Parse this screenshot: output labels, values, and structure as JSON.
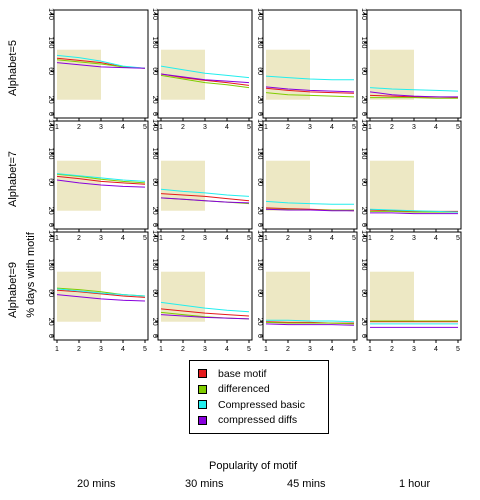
{
  "chart_data": {
    "type": "line",
    "ylabel": "% days with motif",
    "xlabel": "Popularity of motif",
    "row_labels": [
      "Alphabet=5",
      "Alphabet=7",
      "Alphabet=9"
    ],
    "column_labels": [
      "20 mins",
      "30 mins",
      "45 mins",
      "1 hour"
    ],
    "x_ticks": [
      1,
      2,
      3,
      4,
      5
    ],
    "y_ticks": [
      0,
      20,
      60,
      100,
      140
    ],
    "xlim": [
      1,
      5
    ],
    "ylim": [
      0,
      140
    ],
    "shaded_region": {
      "x": [
        1,
        3
      ],
      "y": [
        20,
        90
      ]
    },
    "shaded_color": "#ede8c4",
    "series_styles": [
      {
        "name": "base motif",
        "color": "#e41a1c"
      },
      {
        "name": "differenced",
        "color": "#80cc00"
      },
      {
        "name": "Compressed basic",
        "color": "#22eeee"
      },
      {
        "name": "compressed diffs",
        "color": "#8800dd"
      }
    ],
    "panels": [
      {
        "row": 0,
        "col": 0,
        "series": [
          [
            78,
            75,
            72,
            66,
            64
          ],
          [
            76,
            73,
            70,
            66,
            64
          ],
          [
            82,
            79,
            74,
            67,
            64
          ],
          [
            72,
            69,
            66,
            65,
            64
          ]
        ]
      },
      {
        "row": 0,
        "col": 1,
        "series": [
          [
            56,
            51,
            47,
            44,
            40
          ],
          [
            54,
            49,
            44,
            41,
            37
          ],
          [
            67,
            62,
            57,
            54,
            51
          ],
          [
            56,
            52,
            48,
            46,
            44
          ]
        ]
      },
      {
        "row": 0,
        "col": 2,
        "series": [
          [
            36,
            33,
            31,
            30,
            29
          ],
          [
            30,
            27,
            26,
            25,
            24
          ],
          [
            53,
            51,
            49,
            48,
            48
          ],
          [
            38,
            35,
            33,
            32,
            31
          ]
        ]
      },
      {
        "row": 0,
        "col": 3,
        "series": [
          [
            26,
            25,
            24,
            24,
            23
          ],
          [
            23,
            23,
            23,
            22,
            22
          ],
          [
            37,
            35,
            34,
            33,
            32
          ],
          [
            31,
            27,
            25,
            24,
            24
          ]
        ]
      },
      {
        "row": 1,
        "col": 0,
        "series": [
          [
            68,
            65,
            61,
            59,
            57
          ],
          [
            71,
            68,
            64,
            61,
            59
          ],
          [
            72,
            69,
            66,
            63,
            61
          ],
          [
            63,
            59,
            56,
            54,
            53
          ]
        ]
      },
      {
        "row": 1,
        "col": 1,
        "series": [
          [
            44,
            42,
            40,
            37,
            34
          ],
          [
            38,
            36,
            34,
            32,
            30
          ],
          [
            50,
            47,
            45,
            42,
            40
          ],
          [
            38,
            36,
            34,
            32,
            31
          ]
        ]
      },
      {
        "row": 1,
        "col": 2,
        "series": [
          [
            24,
            23,
            22,
            21,
            20
          ],
          [
            22,
            22,
            21,
            21,
            21
          ],
          [
            33,
            31,
            30,
            29,
            29
          ],
          [
            22,
            21,
            21,
            20,
            20
          ]
        ]
      },
      {
        "row": 1,
        "col": 3,
        "series": [
          [
            21,
            20,
            19,
            19,
            19
          ],
          [
            19,
            19,
            18,
            18,
            18
          ],
          [
            22,
            21,
            20,
            19,
            18
          ],
          [
            17,
            17,
            16,
            16,
            16
          ]
        ]
      },
      {
        "row": 2,
        "col": 0,
        "series": [
          [
            64,
            62,
            59,
            56,
            54
          ],
          [
            67,
            65,
            62,
            58,
            56
          ],
          [
            66,
            63,
            60,
            58,
            56
          ],
          [
            58,
            55,
            52,
            50,
            49
          ]
        ]
      },
      {
        "row": 2,
        "col": 1,
        "series": [
          [
            38,
            35,
            32,
            30,
            28
          ],
          [
            33,
            30,
            27,
            25,
            24
          ],
          [
            47,
            43,
            39,
            36,
            34
          ],
          [
            30,
            28,
            26,
            25,
            24
          ]
        ]
      },
      {
        "row": 2,
        "col": 2,
        "series": [
          [
            20,
            19,
            19,
            18,
            18
          ],
          [
            19,
            18,
            18,
            18,
            17
          ],
          [
            22,
            22,
            21,
            21,
            20
          ],
          [
            17,
            16,
            16,
            16,
            15
          ]
        ]
      },
      {
        "row": 2,
        "col": 3,
        "series": [
          [
            20,
            20,
            20,
            20,
            20
          ],
          [
            21,
            21,
            21,
            21,
            21
          ],
          [
            17,
            17,
            17,
            17,
            17
          ],
          [
            12,
            12,
            12,
            12,
            12
          ]
        ]
      }
    ]
  }
}
